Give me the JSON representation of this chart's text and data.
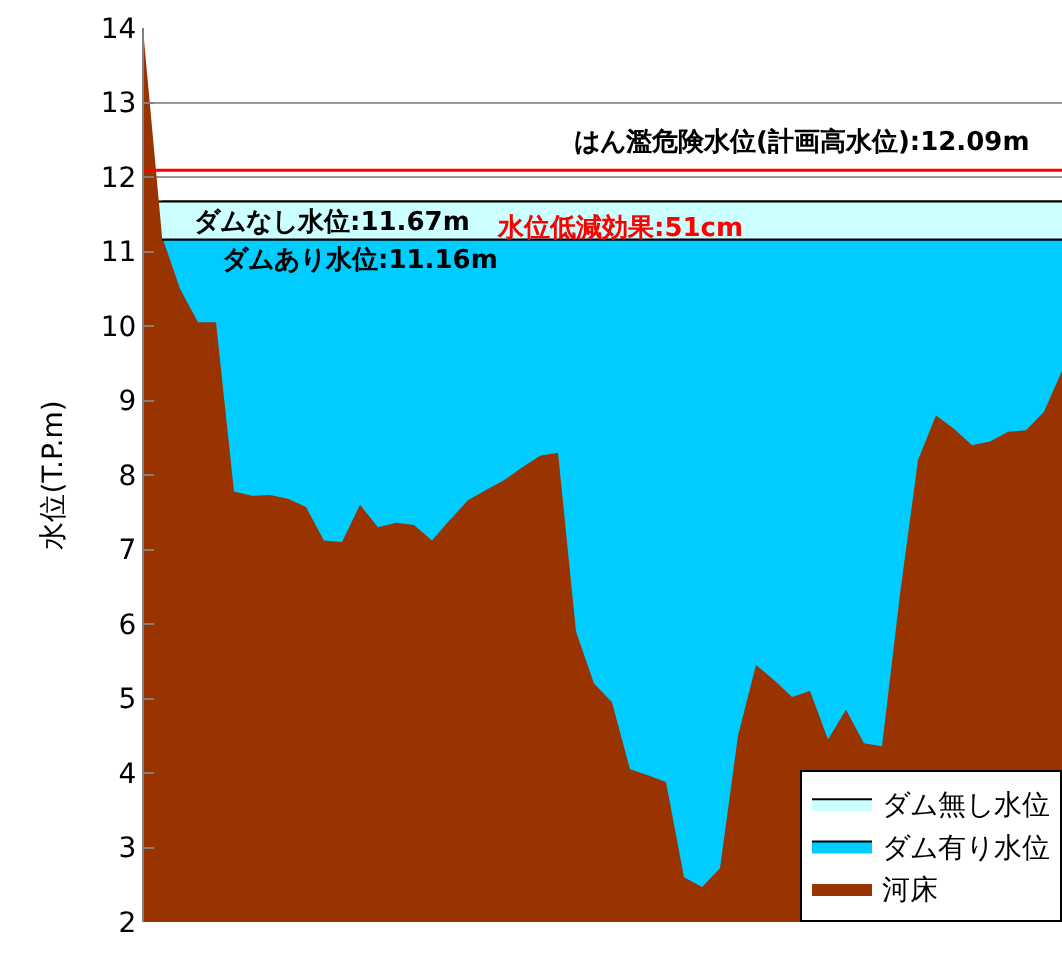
{
  "chart_data": {
    "type": "area",
    "ylabel": "水位(T.P.m)",
    "categories": [
      null,
      null,
      null,
      null,
      null,
      null,
      null,
      null,
      null,
      null,
      null,
      null,
      null,
      null,
      null,
      null,
      null,
      null,
      null,
      null,
      null,
      null,
      null,
      null,
      null,
      null,
      null,
      null,
      null,
      null,
      null,
      null,
      null,
      null,
      null,
      null,
      null,
      null,
      null,
      null,
      null,
      null,
      null,
      null,
      null,
      null,
      null,
      null,
      null,
      null,
      null,
      null
    ],
    "series": [
      {
        "name": "ダム無し水位",
        "color": "#ccffff",
        "values": [
          11.67,
          11.67,
          11.67,
          11.67,
          11.67,
          11.67,
          11.67,
          11.67,
          11.67,
          11.67,
          11.67,
          11.67,
          11.67,
          11.67,
          11.67,
          11.67,
          11.67,
          11.67,
          11.67,
          11.67,
          11.67,
          11.67,
          11.67,
          11.67,
          11.67,
          11.67,
          11.67,
          11.67,
          11.67,
          11.67,
          11.67,
          11.67,
          11.67,
          11.67,
          11.67,
          11.67,
          11.67,
          11.67,
          11.67,
          11.67,
          11.67,
          11.67,
          11.67,
          11.67,
          11.67,
          11.67,
          11.67,
          11.67,
          11.67,
          11.67,
          11.67,
          11.67
        ]
      },
      {
        "name": "ダム有り水位",
        "color": "#00ccff",
        "values": [
          11.16,
          11.16,
          11.16,
          11.16,
          11.16,
          11.16,
          11.16,
          11.16,
          11.16,
          11.16,
          11.16,
          11.16,
          11.16,
          11.16,
          11.16,
          11.16,
          11.16,
          11.16,
          11.16,
          11.16,
          11.16,
          11.16,
          11.16,
          11.16,
          11.16,
          11.16,
          11.16,
          11.16,
          11.16,
          11.16,
          11.16,
          11.16,
          11.16,
          11.16,
          11.16,
          11.16,
          11.16,
          11.16,
          11.16,
          11.16,
          11.16,
          11.16,
          11.16,
          11.16,
          11.16,
          11.16,
          11.16,
          11.16,
          11.16,
          11.16,
          11.16,
          11.16
        ]
      },
      {
        "name": "河床",
        "color": "#993300",
        "values": [
          13.84,
          11.2,
          10.5,
          10.05,
          10.05,
          7.78,
          7.72,
          7.73,
          7.68,
          7.57,
          7.12,
          7.1,
          7.6,
          7.3,
          7.36,
          7.33,
          7.12,
          7.4,
          7.66,
          7.8,
          7.93,
          8.1,
          8.26,
          8.3,
          5.9,
          5.2,
          4.95,
          4.05,
          3.97,
          3.88,
          2.6,
          2.47,
          2.72,
          4.5,
          5.45,
          5.25,
          5.02,
          5.1,
          4.45,
          4.85,
          4.4,
          4.36,
          6.4,
          8.2,
          8.8,
          8.62,
          8.4,
          8.45,
          8.58,
          8.6,
          8.85,
          9.4
        ]
      }
    ],
    "ylim": [
      2,
      14
    ],
    "yticks": [
      2,
      3,
      4,
      5,
      6,
      7,
      8,
      9,
      10,
      11,
      12,
      13,
      14
    ],
    "grid": "y",
    "legend": "bottom right",
    "ref_lines": [
      {
        "axis": "y",
        "value": 12.09,
        "label": "はん濫危険水位(計画高水位):12.09m",
        "color": "#ff0000"
      }
    ],
    "bands": [
      {
        "axis": "y",
        "from": 11.16,
        "to": 11.67,
        "label": "水位低減効果:51cm",
        "color": "#ccffff"
      }
    ],
    "annotations": [
      {
        "text": "ダムなし水位:11.67m",
        "y": 11.67
      },
      {
        "text": "ダムあり水位:11.16m",
        "y": 11.16
      }
    ]
  }
}
